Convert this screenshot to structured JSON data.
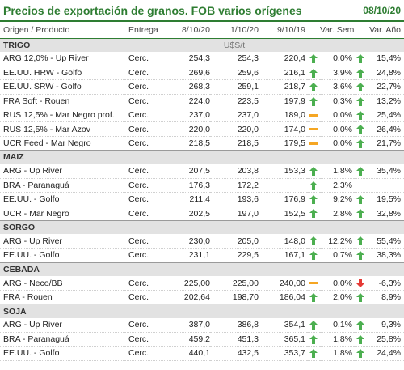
{
  "header": {
    "title": "Precios de exportación de granos. FOB varios orígenes",
    "date": "08/10/20"
  },
  "columns": {
    "name": "Origen / Producto",
    "entrega": "Entrega",
    "d1": "8/10/20",
    "d2": "1/10/20",
    "d3": "9/10/19",
    "sem": "Var. Sem.",
    "ano": "Var. Año"
  },
  "colors": {
    "accent": "#2e7d32",
    "up": "#4caf50",
    "flat": "#f5a623",
    "down": "#e53935",
    "section_bg": "#e2e2e2"
  },
  "chart_data": {
    "type": "table",
    "unit": "U$S/t",
    "sections": [
      {
        "name": "TRIGO",
        "unit": "U$S/t",
        "rows": [
          {
            "name": "ARG 12,0% - Up River",
            "entrega": "Cerc.",
            "d1": "254,3",
            "d2": "254,3",
            "d3": "220,4",
            "i1": "up",
            "sem": "0,0%",
            "i2": "up",
            "ano": "15,4%"
          },
          {
            "name": "EE.UU. HRW - Golfo",
            "entrega": "Cerc.",
            "d1": "269,6",
            "d2": "259,6",
            "d3": "216,1",
            "i1": "up",
            "sem": "3,9%",
            "i2": "up",
            "ano": "24,8%"
          },
          {
            "name": "EE.UU. SRW - Golfo",
            "entrega": "Cerc.",
            "d1": "268,3",
            "d2": "259,1",
            "d3": "218,7",
            "i1": "up",
            "sem": "3,6%",
            "i2": "up",
            "ano": "22,7%"
          },
          {
            "name": "FRA Soft - Rouen",
            "entrega": "Cerc.",
            "d1": "224,0",
            "d2": "223,5",
            "d3": "197,9",
            "i1": "up",
            "sem": "0,3%",
            "i2": "up",
            "ano": "13,2%"
          },
          {
            "name": "RUS 12,5% - Mar Negro prof.",
            "entrega": "Cerc.",
            "d1": "237,0",
            "d2": "237,0",
            "d3": "189,0",
            "i1": "flat",
            "sem": "0,0%",
            "i2": "up",
            "ano": "25,4%"
          },
          {
            "name": "RUS 12,5% - Mar Azov",
            "entrega": "Cerc.",
            "d1": "220,0",
            "d2": "220,0",
            "d3": "174,0",
            "i1": "flat",
            "sem": "0,0%",
            "i2": "up",
            "ano": "26,4%"
          },
          {
            "name": "UCR Feed - Mar Negro",
            "entrega": "Cerc.",
            "d1": "218,5",
            "d2": "218,5",
            "d3": "179,5",
            "i1": "flat",
            "sem": "0,0%",
            "i2": "up",
            "ano": "21,7%"
          }
        ]
      },
      {
        "name": "MAIZ",
        "unit": "",
        "rows": [
          {
            "name": "ARG - Up River",
            "entrega": "Cerc.",
            "d1": "207,5",
            "d2": "203,8",
            "d3": "153,3",
            "i1": "up",
            "sem": "1,8%",
            "i2": "up",
            "ano": "35,4%"
          },
          {
            "name": "BRA - Paranaguá",
            "entrega": "Cerc.",
            "d1": "176,3",
            "d2": "172,2",
            "d3": "",
            "i1": "up",
            "sem": "2,3%",
            "i2": "",
            "ano": ""
          },
          {
            "name": "EE.UU. - Golfo",
            "entrega": "Cerc.",
            "d1": "211,4",
            "d2": "193,6",
            "d3": "176,9",
            "i1": "up",
            "sem": "9,2%",
            "i2": "up",
            "ano": "19,5%"
          },
          {
            "name": "UCR - Mar Negro",
            "entrega": "Cerc.",
            "d1": "202,5",
            "d2": "197,0",
            "d3": "152,5",
            "i1": "up",
            "sem": "2,8%",
            "i2": "up",
            "ano": "32,8%"
          }
        ]
      },
      {
        "name": "SORGO",
        "unit": "",
        "rows": [
          {
            "name": "ARG - Up River",
            "entrega": "Cerc.",
            "d1": "230,0",
            "d2": "205,0",
            "d3": "148,0",
            "i1": "up",
            "sem": "12,2%",
            "i2": "up",
            "ano": "55,4%"
          },
          {
            "name": "EE.UU. - Golfo",
            "entrega": "Cerc.",
            "d1": "231,1",
            "d2": "229,5",
            "d3": "167,1",
            "i1": "up",
            "sem": "0,7%",
            "i2": "up",
            "ano": "38,3%"
          }
        ]
      },
      {
        "name": "CEBADA",
        "unit": "",
        "rows": [
          {
            "name": "ARG - Neco/BB",
            "entrega": "Cerc.",
            "d1": "225,00",
            "d2": "225,00",
            "d3": "240,00",
            "i1": "flat",
            "sem": "0,0%",
            "i2": "down",
            "ano": "-6,3%"
          },
          {
            "name": "FRA - Rouen",
            "entrega": "Cerc.",
            "d1": "202,64",
            "d2": "198,70",
            "d3": "186,04",
            "i1": "up",
            "sem": "2,0%",
            "i2": "up",
            "ano": "8,9%"
          }
        ]
      },
      {
        "name": "SOJA",
        "unit": "",
        "rows": [
          {
            "name": "ARG - Up River",
            "entrega": "Cerc.",
            "d1": "387,0",
            "d2": "386,8",
            "d3": "354,1",
            "i1": "up",
            "sem": "0,1%",
            "i2": "up",
            "ano": "9,3%"
          },
          {
            "name": "BRA - Paranaguá",
            "entrega": "Cerc.",
            "d1": "459,2",
            "d2": "451,3",
            "d3": "365,1",
            "i1": "up",
            "sem": "1,8%",
            "i2": "up",
            "ano": "25,8%"
          },
          {
            "name": "EE.UU. - Golfo",
            "entrega": "Cerc.",
            "d1": "440,1",
            "d2": "432,5",
            "d3": "353,7",
            "i1": "up",
            "sem": "1,8%",
            "i2": "up",
            "ano": "24,4%"
          }
        ]
      }
    ]
  }
}
